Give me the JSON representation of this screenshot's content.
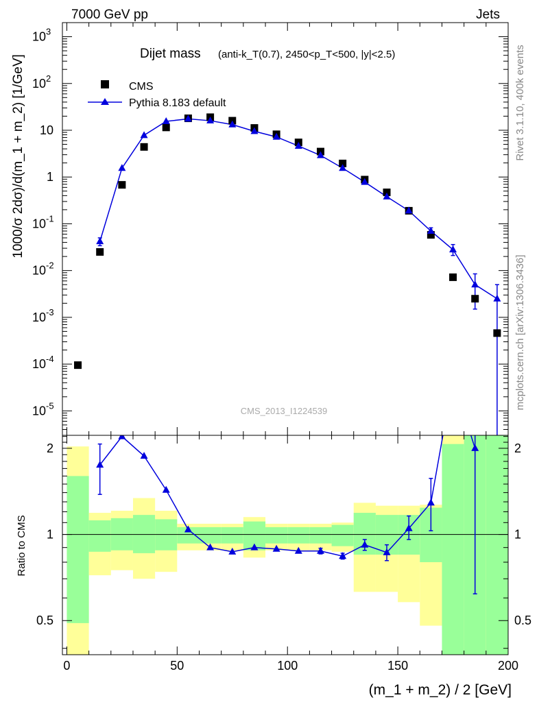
{
  "header": {
    "left": "7000 GeV pp",
    "right": "Jets"
  },
  "side": {
    "rivet": "Rivet 3.1.10,  400k events",
    "mcplots": "mcplots.cern.ch [arXiv:1306.3436]"
  },
  "chart_data": {
    "type": "scatter",
    "title_main": "Dijet mass",
    "title_detail": "(anti-k_T(0.7), 2450<p_T<500, |y|<2.5)",
    "watermark": "CMS_2013_I1224539",
    "xlabel": "(m_1 + m_2) / 2 [GeV]",
    "ylabel": "1000/σ 2dσ)/d(m_1 + m_2) [1/GeV]",
    "ratio_ylabel": "Ratio to CMS",
    "xlim": [
      -2,
      200
    ],
    "ylim_log": [
      3e-06,
      2000
    ],
    "ratio_ylim": [
      0.38,
      2.22
    ],
    "x_ticks": [
      0,
      50,
      100,
      150,
      200
    ],
    "y_ticks_exp": [
      -5,
      -4,
      -3,
      -2,
      -1,
      0,
      1,
      2,
      3
    ],
    "ratio_ticks": [
      0.5,
      1,
      2
    ],
    "legend": [
      "CMS",
      "Pythia 8.183 default"
    ],
    "legend_position": "top-left",
    "colors": {
      "mc": "#0000dd",
      "band_inner": "#99ff99",
      "band_outer": "#ffff99"
    },
    "cms": {
      "x": [
        5,
        15,
        25,
        35,
        45,
        55,
        65,
        75,
        85,
        95,
        105,
        115,
        125,
        135,
        145,
        155,
        165,
        175,
        185,
        195
      ],
      "y": [
        9.5e-05,
        0.025,
        0.68,
        4.4,
        11.5,
        18,
        19,
        16,
        11.2,
        8.2,
        5.5,
        3.5,
        1.95,
        0.88,
        0.47,
        0.19,
        0.058,
        0.0072,
        0.0025,
        0.00046
      ]
    },
    "pythia": {
      "x": [
        15,
        25,
        35,
        45,
        55,
        65,
        75,
        85,
        95,
        105,
        115,
        125,
        135,
        145,
        155,
        165,
        175,
        185,
        195
      ],
      "y": [
        0.042,
        1.55,
        7.8,
        15.5,
        17.5,
        16,
        13.2,
        9.5,
        7.2,
        4.6,
        2.9,
        1.55,
        0.78,
        0.38,
        0.19,
        0.07,
        0.028,
        0.005,
        0.0025
      ],
      "err_low": [
        0.034,
        1.55,
        7.8,
        15.5,
        17.5,
        16,
        13.2,
        9.5,
        7.2,
        4.6,
        2.9,
        1.55,
        0.78,
        0.38,
        0.19,
        0.059,
        0.021,
        0.0015,
        1e-06
      ],
      "err_high": [
        0.05,
        1.55,
        7.8,
        15.5,
        17.5,
        16,
        13.2,
        9.5,
        7.2,
        4.6,
        2.9,
        1.55,
        0.78,
        0.38,
        0.19,
        0.082,
        0.036,
        0.0085,
        0.005
      ]
    },
    "ratio": {
      "x": [
        15,
        25,
        35,
        45,
        55,
        65,
        75,
        85,
        95,
        105,
        115,
        125,
        135,
        145,
        155,
        165,
        175,
        185
      ],
      "y": [
        1.75,
        2.2,
        1.88,
        1.43,
        1.04,
        0.9,
        0.87,
        0.9,
        0.89,
        0.875,
        0.875,
        0.84,
        0.92,
        0.865,
        1.05,
        1.29,
        3.5,
        2.0
      ],
      "err_low": [
        1.38,
        2.2,
        1.88,
        1.43,
        1.04,
        0.9,
        0.87,
        0.9,
        0.89,
        0.875,
        0.855,
        0.82,
        0.88,
        0.81,
        0.96,
        1.03,
        3.5,
        0.62
      ],
      "err_high": [
        2.07,
        2.2,
        1.88,
        1.43,
        1.04,
        0.9,
        0.87,
        0.9,
        0.89,
        0.875,
        0.895,
        0.86,
        0.96,
        0.92,
        1.16,
        1.57,
        3.5,
        3.5
      ]
    },
    "bands": {
      "edges": [
        0,
        10,
        20,
        30,
        40,
        50,
        60,
        70,
        80,
        90,
        100,
        110,
        120,
        130,
        140,
        150,
        160,
        170,
        180,
        190,
        200
      ],
      "inner_low": [
        0.49,
        0.87,
        0.88,
        0.86,
        0.88,
        0.93,
        0.93,
        0.93,
        0.88,
        0.93,
        0.93,
        0.93,
        0.91,
        0.85,
        0.85,
        0.85,
        0.8,
        0.38,
        0.38,
        0.38
      ],
      "inner_high": [
        1.6,
        1.12,
        1.14,
        1.17,
        1.13,
        1.06,
        1.06,
        1.06,
        1.11,
        1.06,
        1.06,
        1.06,
        1.08,
        1.19,
        1.17,
        1.17,
        1.24,
        2.07,
        2.27,
        2.3
      ],
      "outer_low": [
        0.38,
        0.72,
        0.75,
        0.7,
        0.74,
        0.88,
        0.88,
        0.88,
        0.83,
        0.88,
        0.88,
        0.88,
        0.87,
        0.63,
        0.63,
        0.58,
        0.48,
        0.48,
        0.38,
        0.38
      ],
      "outer_high": [
        2.03,
        1.19,
        1.21,
        1.34,
        1.21,
        1.09,
        1.09,
        1.09,
        1.15,
        1.09,
        1.09,
        1.09,
        1.1,
        1.29,
        1.26,
        1.26,
        1.27,
        2.3,
        2.3,
        2.3
      ]
    }
  }
}
